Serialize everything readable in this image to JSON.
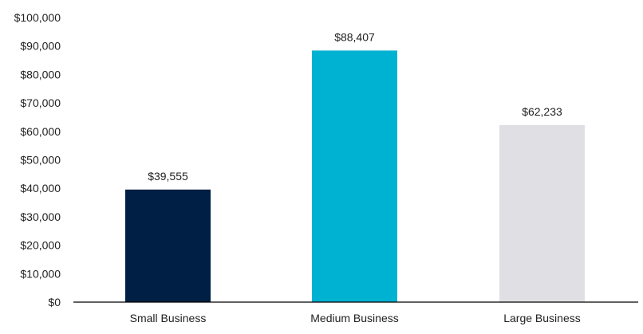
{
  "chart_data": {
    "type": "bar",
    "title": "",
    "xlabel": "",
    "ylabel": "",
    "categories": [
      "Small Business",
      "Medium Business",
      "Large Business"
    ],
    "values": [
      39555,
      88407,
      62233
    ],
    "data_labels": [
      "$39,555",
      "$88,407",
      "$62,233"
    ],
    "colors": [
      "#001f44",
      "#00b2d1",
      "#e0e0e4"
    ],
    "ylim": [
      0,
      100000
    ],
    "yticks": [
      0,
      10000,
      20000,
      30000,
      40000,
      50000,
      60000,
      70000,
      80000,
      90000,
      100000
    ],
    "ytick_labels": [
      "$0",
      "$10,000",
      "$20,000",
      "$30,000",
      "$40,000",
      "$50,000",
      "$60,000",
      "$70,000",
      "$80,000",
      "$90,000",
      "$100,000"
    ],
    "grid": false,
    "legend": "none"
  }
}
